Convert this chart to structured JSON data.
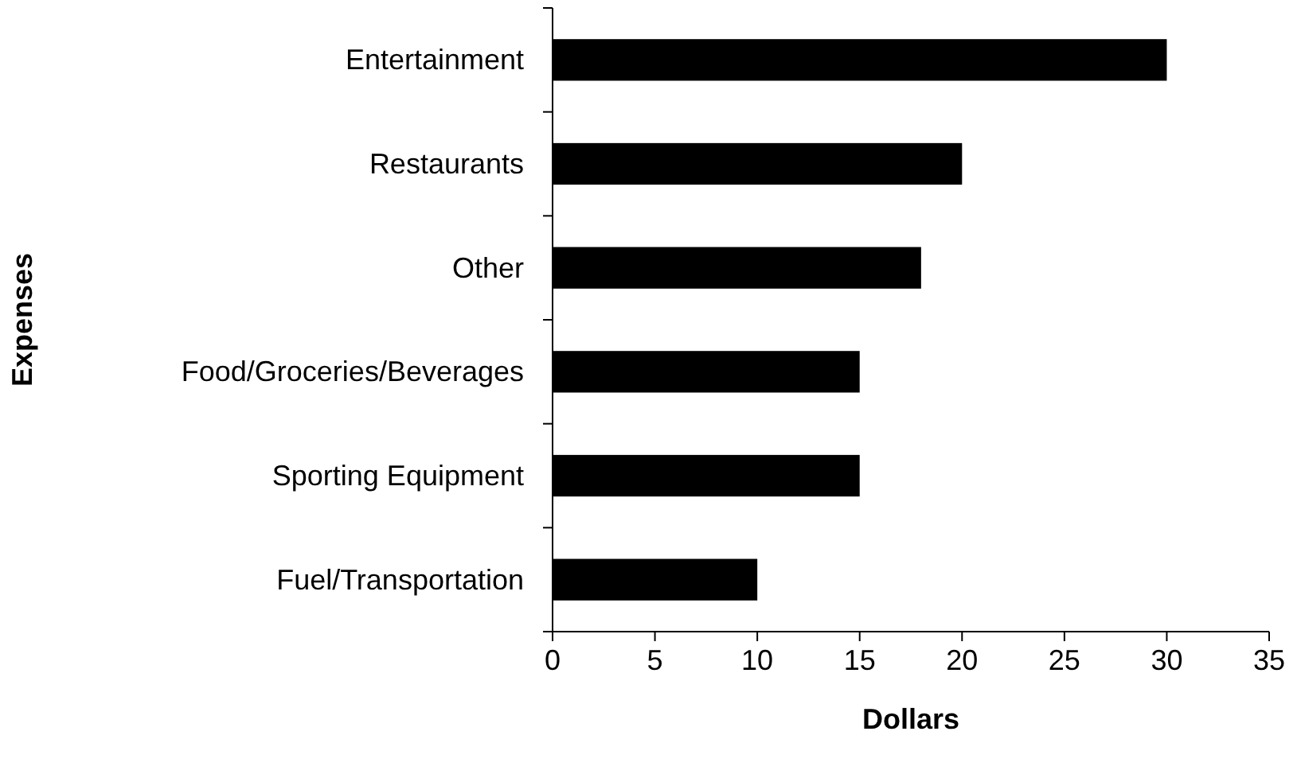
{
  "chart_data": {
    "type": "bar",
    "orientation": "horizontal",
    "xlabel": "Dollars",
    "ylabel": "Expenses",
    "categories": [
      "Entertainment",
      "Restaurants",
      "Other",
      "Food/Groceries/Beverages",
      "Sporting Equipment",
      "Fuel/Transportation"
    ],
    "values": [
      30,
      20,
      18,
      15,
      15,
      10
    ],
    "color": "#000000",
    "xlim": [
      0,
      35
    ],
    "xticks": [
      0,
      5,
      10,
      15,
      20,
      25,
      30,
      35
    ],
    "grid": false
  }
}
